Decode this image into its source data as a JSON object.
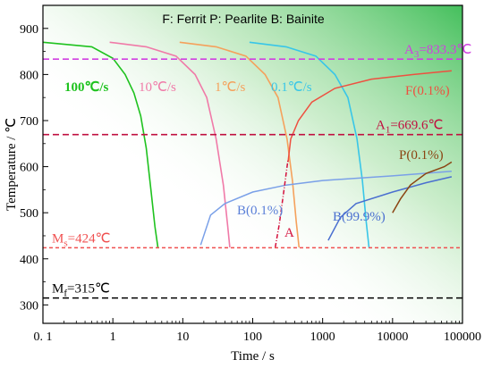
{
  "chart_data": {
    "type": "line",
    "title": "",
    "legend_text": "F: Ferrit   P: Pearlite   B: Bainite",
    "xlabel": "Time / s",
    "ylabel": "Temperature / ℃",
    "xscale": "log",
    "xlim": [
      0.1,
      100000
    ],
    "ylim": [
      260,
      950
    ],
    "x_ticks": [
      0.1,
      1,
      10,
      100,
      1000,
      10000,
      100000
    ],
    "x_tick_labels": [
      "0. 1",
      "1",
      "10",
      "100",
      "1000",
      "10000",
      "100000"
    ],
    "y_ticks": [
      300,
      400,
      500,
      600,
      700,
      800,
      900
    ],
    "y_tick_labels": [
      "300",
      "400",
      "500",
      "600",
      "700",
      "800",
      "900"
    ],
    "background": "green gradient, strongest at top-right",
    "cooling_curves": [
      {
        "label": "100℃/s",
        "color": "#1fc21f",
        "label_color": "#1fc21f",
        "points": [
          [
            0.1,
            870
          ],
          [
            0.5,
            860
          ],
          [
            1.0,
            835
          ],
          [
            1.5,
            800
          ],
          [
            2.0,
            760
          ],
          [
            2.5,
            710
          ],
          [
            3.0,
            640
          ],
          [
            3.5,
            550
          ],
          [
            4.0,
            470
          ],
          [
            4.4,
            425
          ]
        ]
      },
      {
        "label": "10℃/s",
        "color": "#f07aa8",
        "label_color": "#f07aa8",
        "points": [
          [
            0.9,
            870
          ],
          [
            3,
            860
          ],
          [
            8,
            840
          ],
          [
            15,
            800
          ],
          [
            22,
            750
          ],
          [
            30,
            660
          ],
          [
            38,
            560
          ],
          [
            44,
            470
          ],
          [
            47,
            425
          ]
        ]
      },
      {
        "label": "1℃/s",
        "color": "#f5a15c",
        "label_color": "#f5a15c",
        "points": [
          [
            9,
            870
          ],
          [
            30,
            860
          ],
          [
            80,
            840
          ],
          [
            150,
            800
          ],
          [
            230,
            750
          ],
          [
            310,
            660
          ],
          [
            370,
            570
          ],
          [
            420,
            480
          ],
          [
            460,
            425
          ]
        ]
      },
      {
        "label": "0.1℃/s",
        "color": "#38c6e8",
        "label_color": "#38c6e8",
        "points": [
          [
            90,
            870
          ],
          [
            300,
            860
          ],
          [
            800,
            840
          ],
          [
            1500,
            800
          ],
          [
            2300,
            750
          ],
          [
            3100,
            660
          ],
          [
            3700,
            570
          ],
          [
            4200,
            480
          ],
          [
            4600,
            425
          ]
        ]
      }
    ],
    "transformation_curves": [
      {
        "label": "F(0.1%)",
        "color": "#ee5040",
        "label_color": "#ee5040",
        "points": [
          [
            320,
            610
          ],
          [
            350,
            660
          ],
          [
            450,
            700
          ],
          [
            700,
            740
          ],
          [
            1500,
            770
          ],
          [
            5000,
            790
          ],
          [
            20000,
            800
          ],
          [
            70000,
            808
          ]
        ]
      },
      {
        "label": "B(0.1%)",
        "color": "#7aa0e8",
        "label_color": "#5a7fd8",
        "points": [
          [
            18,
            430
          ],
          [
            25,
            495
          ],
          [
            40,
            520
          ],
          [
            100,
            545
          ],
          [
            300,
            560
          ],
          [
            1000,
            570
          ],
          [
            10000,
            580
          ],
          [
            70000,
            590
          ]
        ]
      },
      {
        "label": "B(99.9%)",
        "color": "#4a6fd0",
        "label_color": "#4a6fd0",
        "points": [
          [
            1200,
            440
          ],
          [
            1800,
            490
          ],
          [
            3000,
            520
          ],
          [
            10000,
            545
          ],
          [
            30000,
            565
          ],
          [
            70000,
            578
          ]
        ]
      },
      {
        "label": "P(0.1%)",
        "color": "#8b4513",
        "label_color": "#8b4513",
        "points": [
          [
            10000,
            500
          ],
          [
            13000,
            530
          ],
          [
            18000,
            560
          ],
          [
            30000,
            585
          ],
          [
            55000,
            600
          ],
          [
            70000,
            610
          ]
        ]
      },
      {
        "label": "A",
        "color": "#d4103c",
        "label_color": "#d4103c",
        "dashed": true,
        "points": [
          [
            210,
            425
          ],
          [
            240,
            475
          ],
          [
            280,
            550
          ],
          [
            310,
            600
          ],
          [
            320,
            615
          ]
        ]
      }
    ],
    "reference_lines": [
      {
        "label": "A3=833.3℃",
        "label_main": "A",
        "label_sub": "3",
        "label_rest": "=833.3℃",
        "value": 833.3,
        "color": "#d040e0"
      },
      {
        "label": "A1=669.6℃",
        "label_main": "A",
        "label_sub": "1",
        "label_rest": "=669.6℃",
        "value": 669.6,
        "color": "#c01040"
      },
      {
        "label": "Ms=424℃",
        "label_main": "M",
        "label_sub": "s",
        "label_rest": "=424℃",
        "value": 424,
        "color": "#f05050"
      },
      {
        "label": "Mf=315℃",
        "label_main": "M",
        "label_sub": "f",
        "label_rest": "=315℃",
        "value": 315,
        "color": "#000000"
      }
    ]
  }
}
